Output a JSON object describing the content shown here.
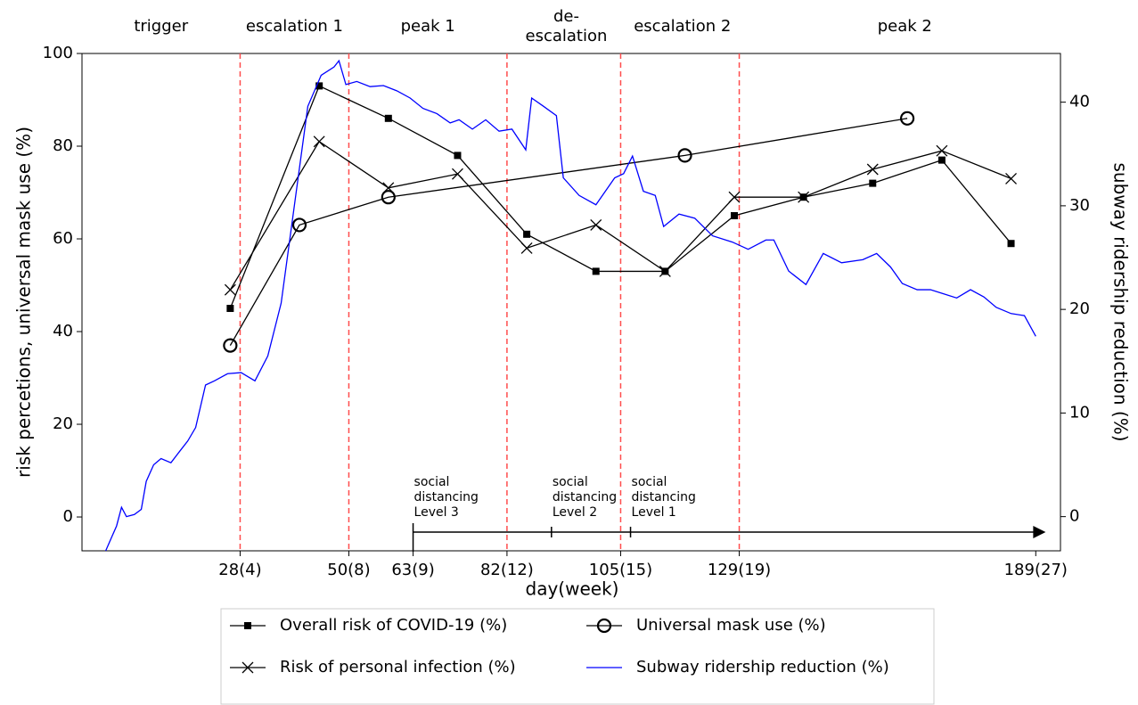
{
  "chart_data": {
    "type": "line",
    "xlabel": "day(week)",
    "ylabel": "risk percetions, universal mask use (%)",
    "y2label": "subway ridership reduction (%)",
    "xlim": [
      -4,
      194
    ],
    "ylim": [
      -7.3,
      100
    ],
    "y2lim": [
      -3.3,
      44.7
    ],
    "xticks": [
      {
        "value": 28,
        "label": "28(4)"
      },
      {
        "value": 50,
        "label": "50(8)"
      },
      {
        "value": 63,
        "label": "63(9)"
      },
      {
        "value": 82,
        "label": "82(12)"
      },
      {
        "value": 105,
        "label": "105(15)"
      },
      {
        "value": 129,
        "label": "129(19)"
      },
      {
        "value": 189,
        "label": "189(27)"
      }
    ],
    "yticks": [
      0,
      20,
      40,
      60,
      80,
      100
    ],
    "y2ticks": [
      0,
      10,
      20,
      30,
      40
    ],
    "vlines": [
      28,
      50,
      82,
      105,
      129
    ],
    "vline_color": "#ff4d4d",
    "phases": [
      {
        "lines": [
          "trigger"
        ],
        "x": 12
      },
      {
        "lines": [
          "escalation 1"
        ],
        "x": 39
      },
      {
        "lines": [
          "peak 1"
        ],
        "x": 66
      },
      {
        "lines": [
          "de-",
          "escalation"
        ],
        "x": 94
      },
      {
        "lines": [
          "escalation 2"
        ],
        "x": 117.5
      },
      {
        "lines": [
          "peak 2"
        ],
        "x": 162.5
      }
    ],
    "timeline": {
      "start": 63,
      "end": 191,
      "ticks": [
        63,
        91,
        107
      ],
      "labels": [
        {
          "lines": [
            "social",
            "distancing",
            "Level 3"
          ],
          "x": 63
        },
        {
          "lines": [
            "social",
            "distancing",
            "Level 2"
          ],
          "x": 91
        },
        {
          "lines": [
            "social",
            "distancing",
            "Level 1"
          ],
          "x": 107
        }
      ]
    },
    "series": [
      {
        "name": "Overall risk of COVID-19 (%)",
        "color": "#000000",
        "marker": "square",
        "x": [
          26,
          44,
          58,
          72,
          86,
          100,
          114,
          128,
          142,
          156,
          170,
          184
        ],
        "values": [
          45,
          93,
          86,
          78,
          61,
          53,
          53,
          65,
          69,
          72,
          77,
          59
        ]
      },
      {
        "name": "Universal mask use (%)",
        "color": "#000000",
        "marker": "circle",
        "x": [
          26,
          40,
          58,
          118,
          163
        ],
        "values": [
          37,
          63,
          69,
          78,
          86
        ]
      },
      {
        "name": "Risk of personal infection (%)",
        "color": "#000000",
        "marker": "x",
        "x": [
          26,
          44,
          58,
          72,
          86,
          100,
          114,
          128,
          142,
          156,
          170,
          184
        ],
        "values": [
          49,
          81,
          71,
          74,
          58,
          63,
          53,
          69,
          69,
          75,
          79,
          73
        ]
      },
      {
        "name": "Subway ridership reduction (%)",
        "color": "#0000ff",
        "marker": "none",
        "axis": "y2",
        "x": [
          0.8,
          3,
          4,
          5,
          6.6,
          8,
          9,
          10.5,
          12,
          14,
          15.6,
          17.4,
          19,
          21,
          22.8,
          25.5,
          28.2,
          31,
          33.6,
          36.3,
          39,
          41.7,
          44.4,
          47,
          48,
          49.4,
          51.6,
          54.3,
          57,
          59.7,
          62.4,
          65,
          67.8,
          70.5,
          72.3,
          75,
          77.7,
          80.4,
          83,
          85.8,
          87,
          89.4,
          92,
          93.4,
          96.6,
          100,
          103.8,
          105.6,
          107.4,
          109.6,
          112,
          113.7,
          116.8,
          120,
          123.6,
          127.6,
          130.8,
          134.4,
          136,
          139,
          142.5,
          146,
          149.7,
          154,
          156.8,
          159.6,
          162,
          165,
          167.7,
          170.4,
          173,
          175.8,
          178.5,
          181,
          184,
          186.7,
          189
        ],
        "values": [
          -3.3,
          -0.9,
          0.9,
          0,
          0.2,
          0.7,
          3.4,
          5.0,
          5.6,
          5.2,
          6.2,
          7.3,
          8.6,
          12.7,
          13.1,
          13.8,
          13.9,
          13.1,
          15.5,
          20.6,
          30.1,
          39.6,
          42.6,
          43.4,
          44.0,
          41.7,
          42.0,
          41.5,
          41.6,
          41.1,
          40.4,
          39.4,
          38.9,
          38.0,
          38.3,
          37.4,
          38.3,
          37.2,
          37.4,
          35.4,
          40.4,
          39.6,
          38.7,
          32.7,
          31.0,
          30.1,
          32.7,
          33.1,
          34.8,
          31.4,
          31.0,
          28.0,
          29.2,
          28.8,
          27.1,
          26.5,
          25.8,
          26.7,
          26.7,
          23.7,
          22.4,
          25.4,
          24.5,
          24.8,
          25.4,
          24.1,
          22.5,
          21.9,
          21.9,
          21.5,
          21.1,
          21.9,
          21.2,
          20.2,
          19.6,
          19.4,
          17.4
        ]
      }
    ]
  }
}
